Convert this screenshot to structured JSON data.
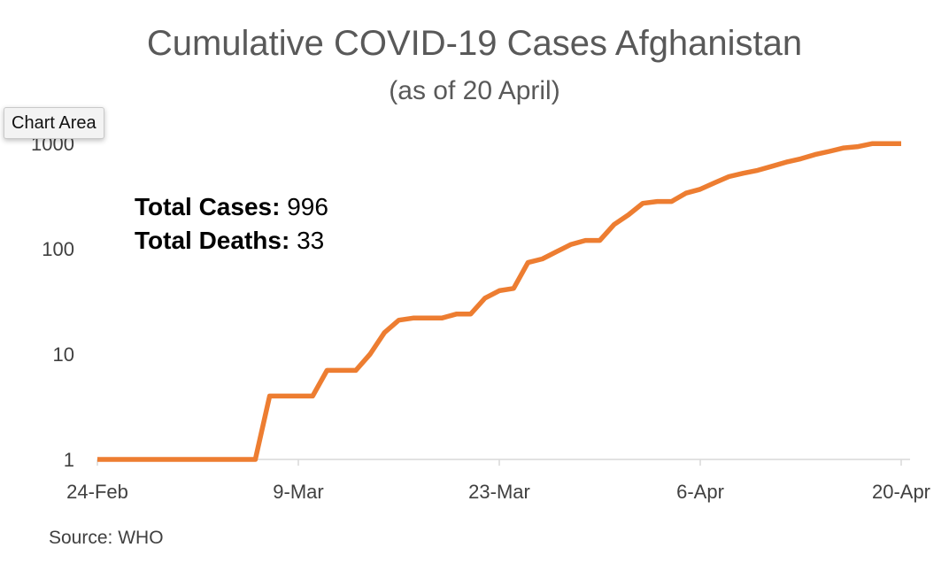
{
  "chart_data": {
    "type": "line",
    "title": "Cumulative COVID-19 Cases Afghanistan",
    "subtitle": "(as of 20 April)",
    "source": "Source: WHO",
    "y_scale": "log",
    "ylim": [
      1,
      1000
    ],
    "y_ticks": [
      "1",
      "10",
      "100",
      "1000"
    ],
    "x_tick_labels": [
      "24-Feb",
      "9-Mar",
      "23-Mar",
      "6-Apr",
      "20-Apr"
    ],
    "x_ticks": [
      "2020-02-24",
      "2020-03-09",
      "2020-03-23",
      "2020-04-06",
      "2020-04-20"
    ],
    "xlim": [
      "2020-02-24",
      "2020-04-20"
    ],
    "grid": false,
    "line_color": "#ED7D31",
    "stats": {
      "cases_label": "Total Cases:",
      "cases_value": "996",
      "deaths_label": "Total Deaths:",
      "deaths_value": "33"
    },
    "series": [
      {
        "x": [
          "2020-02-24",
          "2020-02-25",
          "2020-02-26",
          "2020-02-27",
          "2020-02-28",
          "2020-02-29",
          "2020-03-01",
          "2020-03-02",
          "2020-03-03",
          "2020-03-04",
          "2020-03-05",
          "2020-03-06",
          "2020-03-07",
          "2020-03-08",
          "2020-03-09",
          "2020-03-10",
          "2020-03-11",
          "2020-03-12",
          "2020-03-13",
          "2020-03-14",
          "2020-03-15",
          "2020-03-16",
          "2020-03-17",
          "2020-03-18",
          "2020-03-19",
          "2020-03-20",
          "2020-03-21",
          "2020-03-22",
          "2020-03-23",
          "2020-03-24",
          "2020-03-25",
          "2020-03-26",
          "2020-03-27",
          "2020-03-28",
          "2020-03-29",
          "2020-03-30",
          "2020-03-31",
          "2020-04-01",
          "2020-04-02",
          "2020-04-03",
          "2020-04-04",
          "2020-04-05",
          "2020-04-06",
          "2020-04-07",
          "2020-04-08",
          "2020-04-09",
          "2020-04-10",
          "2020-04-11",
          "2020-04-12",
          "2020-04-13",
          "2020-04-14",
          "2020-04-15",
          "2020-04-16",
          "2020-04-17",
          "2020-04-18",
          "2020-04-19",
          "2020-04-20"
        ],
        "values": [
          1,
          1,
          1,
          1,
          1,
          1,
          1,
          1,
          1,
          1,
          1,
          1,
          4,
          4,
          4,
          4,
          7,
          7,
          7,
          10,
          16,
          21,
          22,
          22,
          22,
          24,
          24,
          34,
          40,
          42,
          74,
          80,
          94,
          110,
          120,
          120,
          170,
          210,
          270,
          281,
          281,
          337,
          367,
          423,
          484,
          521,
          555,
          607,
          665,
          714,
          784,
          840,
          906,
          933,
          996,
          996,
          996
        ]
      }
    ]
  }
}
